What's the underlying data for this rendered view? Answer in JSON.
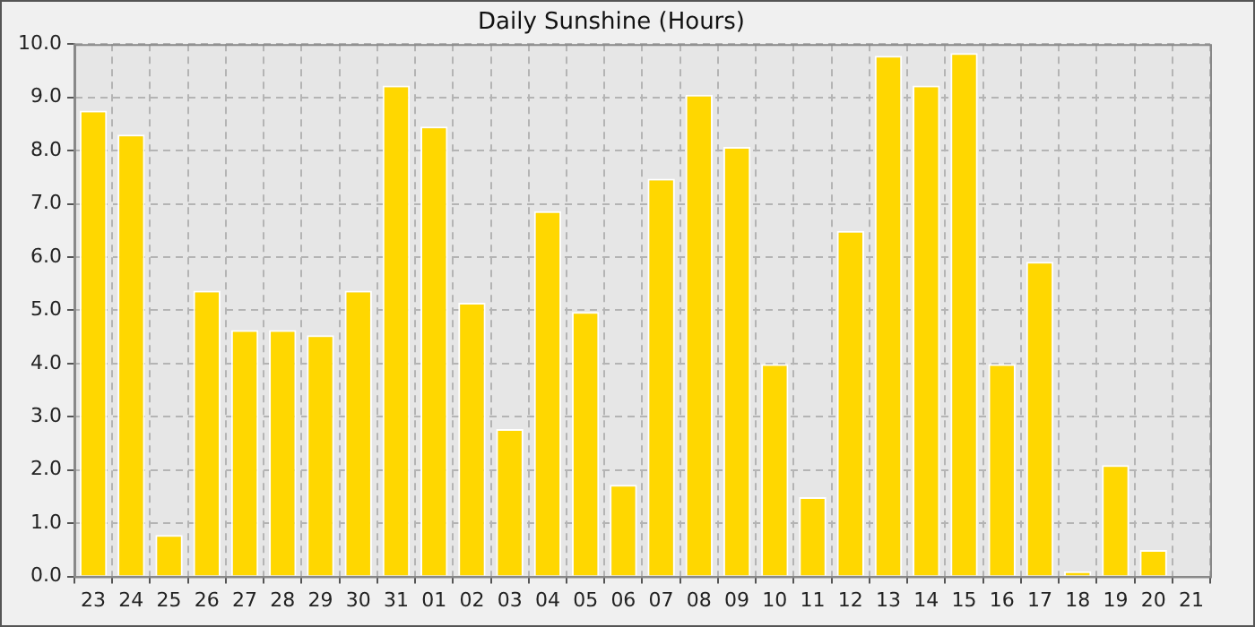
{
  "chart_data": {
    "type": "bar",
    "title": "Daily Sunshine (Hours)",
    "categories": [
      "23",
      "24",
      "25",
      "26",
      "27",
      "28",
      "29",
      "30",
      "31",
      "01",
      "02",
      "03",
      "04",
      "05",
      "06",
      "07",
      "08",
      "09",
      "10",
      "11",
      "12",
      "13",
      "14",
      "15",
      "16",
      "17",
      "18",
      "19",
      "20",
      "21"
    ],
    "values": [
      8.75,
      8.3,
      0.78,
      5.37,
      4.63,
      4.63,
      4.53,
      5.37,
      9.22,
      8.45,
      5.14,
      2.77,
      6.86,
      4.97,
      1.72,
      7.47,
      9.05,
      8.07,
      3.99,
      1.49,
      6.49,
      9.78,
      9.22,
      9.83,
      3.99,
      5.91,
      0.1,
      2.09,
      0.5,
      0
    ],
    "color": "#ffd700",
    "ylim": [
      0,
      10
    ],
    "yticks": [
      {
        "value": 0,
        "label": "0.0"
      },
      {
        "value": 1,
        "label": "1.0"
      },
      {
        "value": 2,
        "label": "2.0"
      },
      {
        "value": 3,
        "label": "3.0"
      },
      {
        "value": 4,
        "label": "4.0"
      },
      {
        "value": 5,
        "label": "5.0"
      },
      {
        "value": 6,
        "label": "6.0"
      },
      {
        "value": 7,
        "label": "7.0"
      },
      {
        "value": 8,
        "label": "8.0"
      },
      {
        "value": 9,
        "label": "9.0"
      },
      {
        "value": 10,
        "label": "10.0"
      }
    ],
    "grid": true,
    "legend": false
  }
}
